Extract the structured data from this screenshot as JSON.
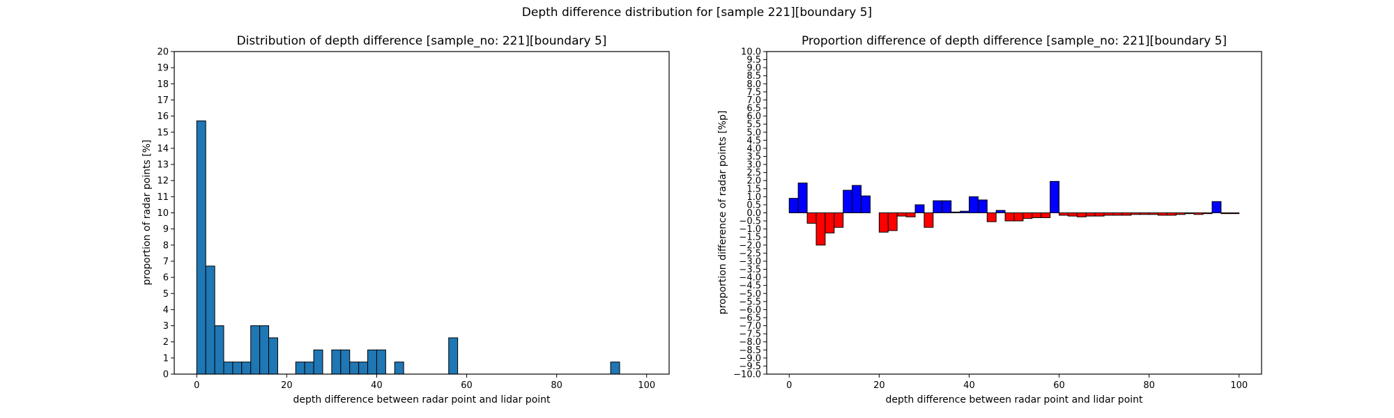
{
  "figure": {
    "title": "Depth difference distribution for [sample 221][boundary 5]"
  },
  "chart_data": [
    {
      "type": "bar",
      "title": "Distribution of depth difference [sample_no: 221][boundary 5]",
      "xlabel": "depth difference between radar point and lidar point",
      "ylabel": "proportion of radar points [%]",
      "xlim": [
        -5,
        105
      ],
      "ylim": [
        0,
        20
      ],
      "bin_width": 2,
      "xticks": [
        0,
        20,
        40,
        60,
        80,
        100
      ],
      "yticks": [
        0,
        1,
        2,
        3,
        4,
        5,
        6,
        7,
        8,
        9,
        10,
        11,
        12,
        13,
        14,
        15,
        16,
        17,
        18,
        19,
        20
      ],
      "bar_color": "#1f77b4",
      "bin_starts": [
        0,
        2,
        4,
        6,
        8,
        10,
        12,
        14,
        16,
        18,
        20,
        22,
        24,
        26,
        28,
        30,
        32,
        34,
        36,
        38,
        40,
        42,
        44,
        46,
        48,
        50,
        52,
        54,
        56,
        58,
        60,
        62,
        64,
        66,
        68,
        70,
        72,
        74,
        76,
        78,
        80,
        82,
        84,
        86,
        88,
        90,
        92,
        94,
        96,
        98
      ],
      "values": [
        15.7,
        6.7,
        3.0,
        0.75,
        0.75,
        0.75,
        3.0,
        3.0,
        2.25,
        0,
        0,
        0.75,
        0.75,
        1.5,
        0,
        1.5,
        1.5,
        0.75,
        0.75,
        1.5,
        1.5,
        0,
        0.75,
        0,
        0,
        0,
        0,
        0,
        2.25,
        0,
        0,
        0,
        0,
        0,
        0,
        0,
        0,
        0,
        0,
        0,
        0,
        0,
        0,
        0,
        0,
        0,
        0.75,
        0,
        0,
        0
      ]
    },
    {
      "type": "bar",
      "title": "Proportion difference of depth difference [sample_no: 221][boundary 5]",
      "xlabel": "depth difference between radar point and lidar point",
      "ylabel": "proportion difference of radar points [%p]",
      "xlim": [
        -5,
        105
      ],
      "ylim": [
        -10,
        10
      ],
      "bin_width": 2,
      "xticks": [
        0,
        20,
        40,
        60,
        80,
        100
      ],
      "yticks": [
        "10.0",
        "9.5",
        "9.0",
        "8.5",
        "8.0",
        "7.5",
        "7.0",
        "6.5",
        "6.0",
        "5.5",
        "5.0",
        "4.5",
        "4.0",
        "3.5",
        "3.0",
        "2.5",
        "2.0",
        "1.5",
        "1.0",
        "0.5",
        "0.0",
        "−0.5",
        "−1.0",
        "−1.5",
        "−2.0",
        "−2.5",
        "−3.0",
        "−3.5",
        "−4.0",
        "−4.5",
        "−5.0",
        "−5.5",
        "−6.0",
        "−6.5",
        "−7.0",
        "−7.5",
        "−8.0",
        "−8.5",
        "−9.0",
        "−9.5",
        "−10.0"
      ],
      "positive_color": "#0000ff",
      "negative_color": "#ff0000",
      "bin_starts": [
        0,
        2,
        4,
        6,
        8,
        10,
        12,
        14,
        16,
        18,
        20,
        22,
        24,
        26,
        28,
        30,
        32,
        34,
        36,
        38,
        40,
        42,
        44,
        46,
        48,
        50,
        52,
        54,
        56,
        58,
        60,
        62,
        64,
        66,
        68,
        70,
        72,
        74,
        76,
        78,
        80,
        82,
        84,
        86,
        88,
        90,
        92,
        94,
        96,
        98
      ],
      "values": [
        0.9,
        1.85,
        -0.65,
        -2.0,
        -1.25,
        -0.9,
        1.4,
        1.7,
        1.05,
        0,
        -1.2,
        -1.1,
        -0.2,
        -0.25,
        0.5,
        -0.9,
        0.75,
        0.75,
        0.05,
        0.1,
        1.0,
        0.8,
        -0.55,
        0.15,
        -0.5,
        -0.5,
        -0.35,
        -0.3,
        -0.3,
        1.95,
        -0.15,
        -0.2,
        -0.25,
        -0.2,
        -0.2,
        -0.15,
        -0.15,
        -0.15,
        -0.1,
        -0.1,
        -0.1,
        -0.15,
        -0.15,
        -0.1,
        -0.05,
        -0.1,
        -0.05,
        0.7,
        -0.05,
        -0.05
      ]
    }
  ]
}
